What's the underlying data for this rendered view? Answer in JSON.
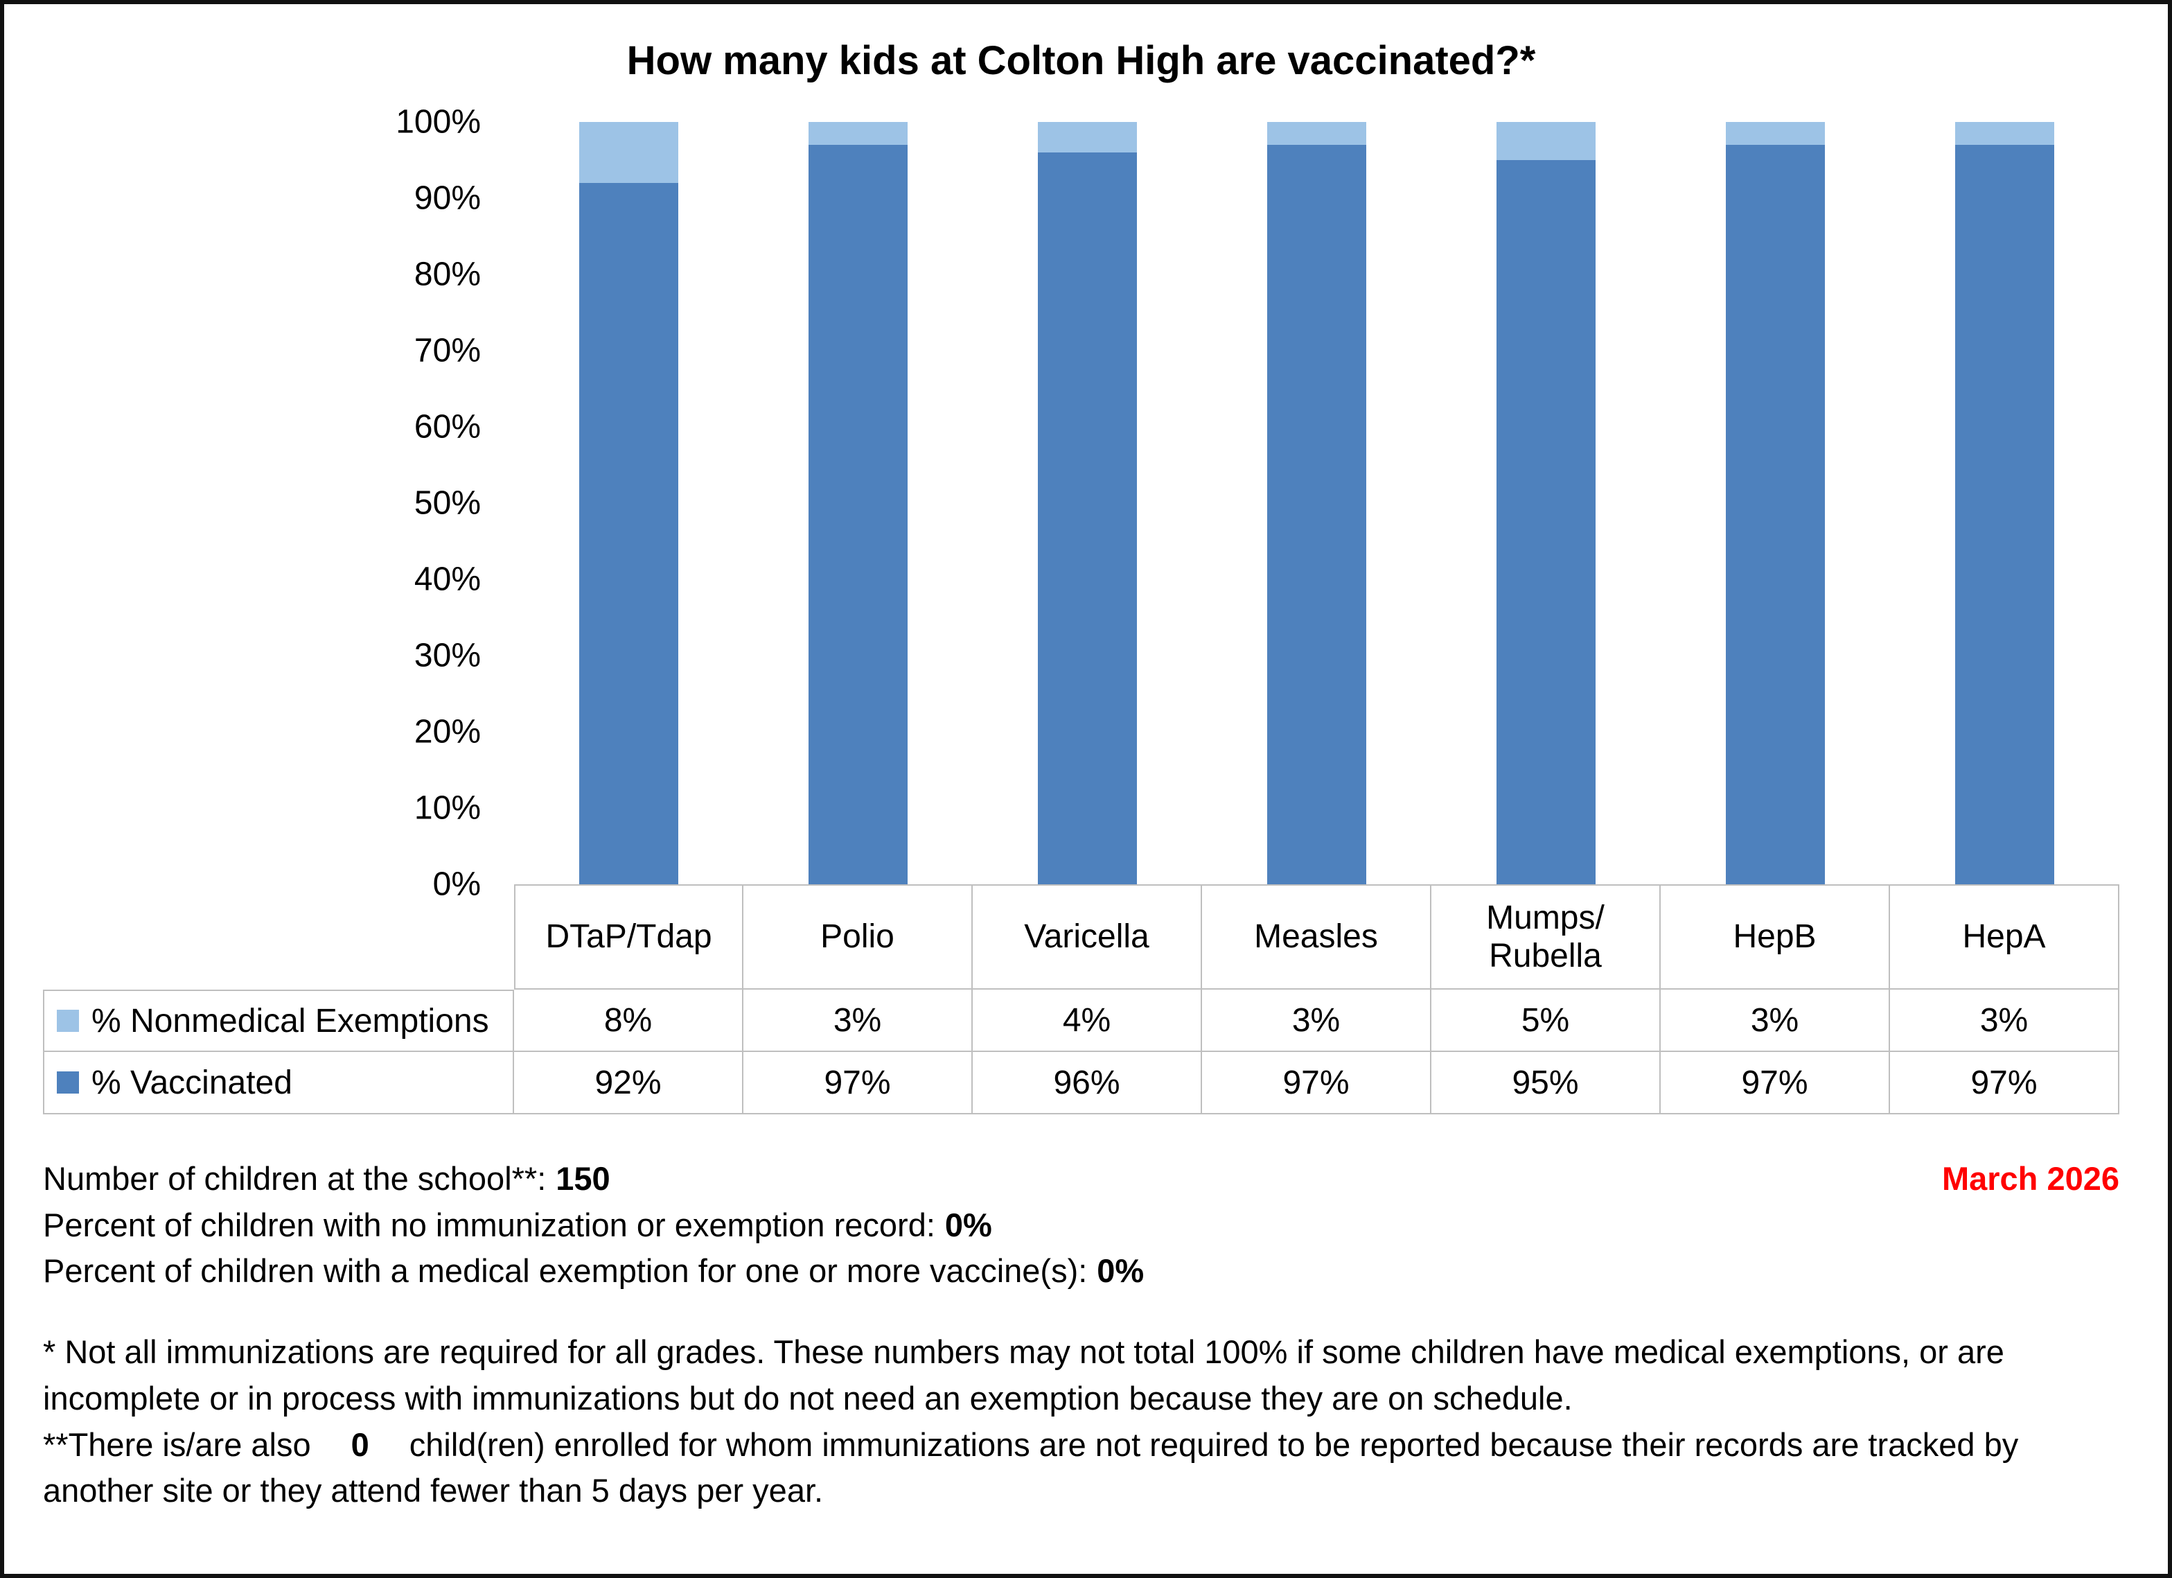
{
  "chart_data": {
    "type": "bar",
    "stacked": true,
    "title": "How many kids at Colton High are vaccinated?*",
    "categories": [
      "DTaP/Tdap",
      "Polio",
      "Varicella",
      "Measles",
      "Mumps/\nRubella",
      "HepB",
      "HepA"
    ],
    "series": [
      {
        "name": "% Nonmedical Exemptions",
        "color": "#9dc3e6",
        "values": [
          8,
          3,
          4,
          3,
          5,
          3,
          3
        ]
      },
      {
        "name": "% Vaccinated",
        "color": "#4e81bd",
        "values": [
          92,
          97,
          96,
          97,
          95,
          97,
          97
        ]
      }
    ],
    "ylim": [
      0,
      100
    ],
    "yticks": [
      "100%",
      "90%",
      "80%",
      "70%",
      "60%",
      "50%",
      "40%",
      "30%",
      "20%",
      "10%",
      "0%"
    ],
    "grid": false,
    "legend_position": "table-left",
    "value_suffix": "%"
  },
  "footer": {
    "line1_label": "Number of children at the school**:",
    "line1_value": "150",
    "date": "March 2026",
    "line2_label": "Percent of children with no immunization or exemption record:",
    "line2_value": "0%",
    "line3_label": "Percent of children with a medical exemption for one or more vaccine(s):",
    "line3_value": "0%",
    "note1": "* Not all immunizations are required for all grades. These numbers may not total 100% if some children have medical exemptions, or are incomplete or in process with immunizations but do not need an exemption because they are on schedule.",
    "note2_prefix": "**There is/are also",
    "note2_value": "0",
    "note2_suffix": "child(ren) enrolled for whom immunizations are not required to be reported because their records are tracked by another site or they attend fewer than 5 days per year."
  }
}
